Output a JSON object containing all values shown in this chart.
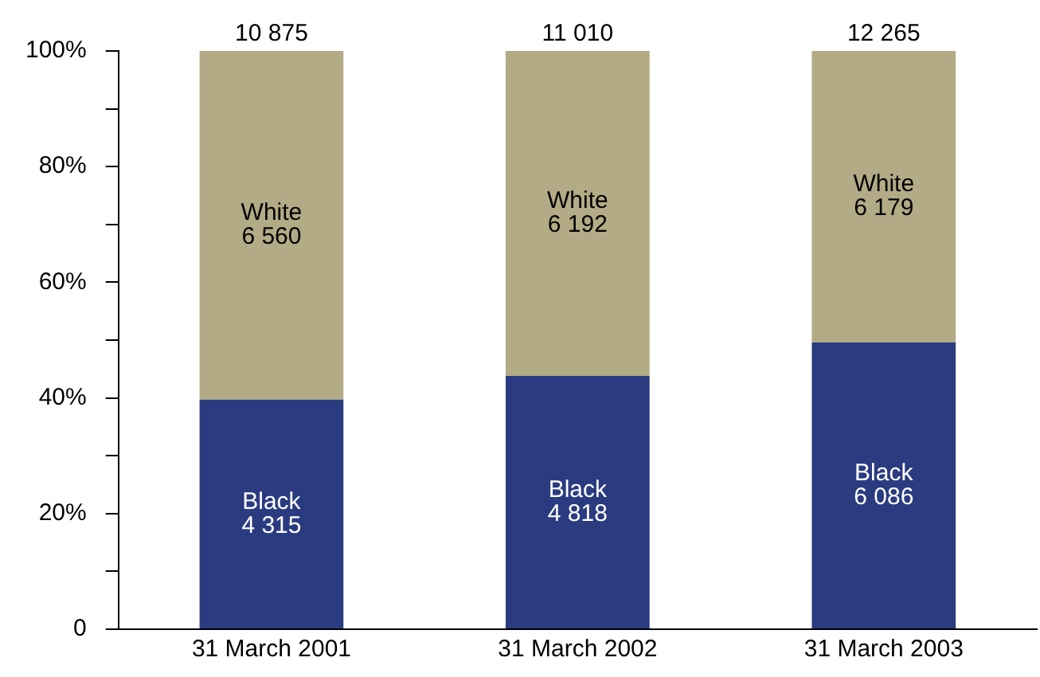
{
  "chart_data": {
    "type": "bar",
    "stacked": true,
    "categories": [
      "31 March 2001",
      "31 March 2002",
      "31 March 2003"
    ],
    "series": [
      {
        "name": "Black",
        "color": "#2a3b80",
        "values": [
          39.7,
          43.8,
          49.6
        ]
      },
      {
        "name": "White",
        "color": "#b3ab86",
        "values": [
          60.3,
          56.2,
          50.4
        ]
      }
    ],
    "annotations": [
      "4 315",
      "4 818",
      "6 086",
      "6 560",
      "6 192",
      "6 179",
      {
        "text": "10 875",
        "x": "31 March 2001",
        "y": 100
      },
      {
        "text": "11 010",
        "x": "31 March 2002",
        "y": 100
      },
      {
        "text": "12 265",
        "x": "31 March 2003",
        "y": 100
      }
    ],
    "ylim": [
      0,
      100
    ],
    "yticks": [
      {
        "value": 0,
        "label": "0"
      },
      {
        "value": 10,
        "label": null
      },
      {
        "value": 20,
        "label": "20%"
      },
      {
        "value": 30,
        "label": null
      },
      {
        "value": 40,
        "label": "40%"
      },
      {
        "value": 50,
        "label": null
      },
      {
        "value": 60,
        "label": "60%"
      },
      {
        "value": 70,
        "label": null
      },
      {
        "value": 80,
        "label": "80%"
      },
      {
        "value": 90,
        "label": null
      },
      {
        "value": 100,
        "label": "100%"
      }
    ],
    "grid": false,
    "legend": false
  }
}
